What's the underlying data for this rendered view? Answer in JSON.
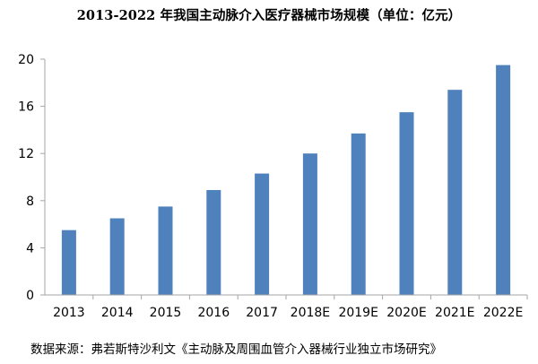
{
  "chart_data": {
    "type": "bar",
    "title": "2013-2022 年我国主动脉介入医疗器械市场规模（单位：亿元）",
    "categories": [
      "2013",
      "2014",
      "2015",
      "2016",
      "2017",
      "2018E",
      "2019E",
      "2020E",
      "2021E",
      "2022E"
    ],
    "values": [
      5.5,
      6.5,
      7.5,
      8.9,
      10.3,
      12.0,
      13.7,
      15.5,
      17.4,
      19.5
    ],
    "ylim": [
      0,
      20
    ],
    "yticks": [
      "0",
      "4",
      "8",
      "12",
      "16",
      "20"
    ],
    "xlabel": "",
    "ylabel": "",
    "grid": false,
    "legend": "none",
    "bar_color": "#4f81bd",
    "axis_color": "#a6a6a6"
  },
  "source_note": "数据来源：弗若斯特沙利文《主动脉及周围血管介入器械行业独立市场研究》"
}
